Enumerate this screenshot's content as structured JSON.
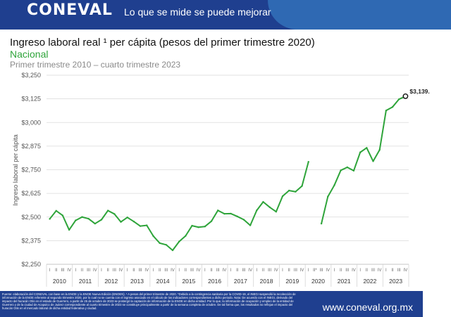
{
  "header": {
    "logo_text": "CONEVAL",
    "tagline": "Lo que se mide se puede mejorar",
    "colors": {
      "background": "#1f3f8f",
      "swoosh": "#2f69b3"
    }
  },
  "footer": {
    "note": "Fuente: elaboración del CONEVAL con base en la ENOE y la ENOE Nueva Edición (ENOEN). ¹ A pesos del primer trimestre de 2020. *Debido a la contingencia sanitaria por la COVID-19, el INEGI suspendió la recolección de información de la ENOE referente al segundo trimestre 2020, por lo cual no se cuenta con el ingreso asociado en el cálculo de los indicadores correspondientes a dicho periodo. Nota: De acuerdo con el INEGI, derivado del impacto del huracán Otis en el estado de Guerrero, a partir de 25 de octubre de 2023 se postergó la captación de información de la ENOE en dicha entidad. Por lo que, la información de ocupación y empleo de la entidad de Guerrero y de la ciudad de Acapulco de Juárez correspondiente al cuarto trimestre de 2023 se constituye principalmente a partir de la semana completa de octubre. De tal forma que, los resultados no reflejan el impacto del huracán Otis en el mercado laboral de dicha entidad federativa y ciudad.",
    "url": "www.coneval.org.mx"
  },
  "chart_data": {
    "type": "line",
    "title": "Ingreso laboral real ¹ per cápita (pesos del primer trimestre 2020)",
    "subtitle": "Nacional",
    "period": "Primer trimestre 2010 – cuarto trimestre 2023",
    "ylabel": "Ingreso laboral per cápita",
    "ylim": [
      2250,
      3250
    ],
    "yticks": [
      "$2,250",
      "$2,375",
      "$2,500",
      "$2,625",
      "$2,750",
      "$2,875",
      "$3,000",
      "$3,125",
      "$3,250"
    ],
    "ytick_values": [
      2250,
      2375,
      2500,
      2625,
      2750,
      2875,
      3000,
      3125,
      3250
    ],
    "grid": true,
    "line_color": "#2ea43a",
    "years": [
      {
        "label": "2010",
        "quarters": [
          "I",
          "II",
          "III",
          "IV"
        ]
      },
      {
        "label": "2011",
        "quarters": [
          "I",
          "II",
          "III",
          "IV"
        ]
      },
      {
        "label": "2012",
        "quarters": [
          "I",
          "II",
          "III",
          "IV"
        ]
      },
      {
        "label": "2013",
        "quarters": [
          "I",
          "II",
          "III",
          "IV"
        ]
      },
      {
        "label": "2014",
        "quarters": [
          "I",
          "II",
          "III",
          "IV"
        ]
      },
      {
        "label": "2015",
        "quarters": [
          "I",
          "II",
          "III",
          "IV"
        ]
      },
      {
        "label": "2016",
        "quarters": [
          "I",
          "II",
          "III",
          "IV"
        ]
      },
      {
        "label": "2017",
        "quarters": [
          "I",
          "II",
          "III",
          "IV"
        ]
      },
      {
        "label": "2018",
        "quarters": [
          "I",
          "II",
          "III",
          "IV"
        ]
      },
      {
        "label": "2019",
        "quarters": [
          "I",
          "II",
          "III",
          "IV"
        ]
      },
      {
        "label": "2020",
        "quarters": [
          "I",
          "II*",
          "III",
          "IV"
        ]
      },
      {
        "label": "2021",
        "quarters": [
          "I",
          "II",
          "III",
          "IV"
        ]
      },
      {
        "label": "2022",
        "quarters": [
          "I",
          "II",
          "III",
          "IV"
        ]
      },
      {
        "label": "2023",
        "quarters": [
          "I",
          "II",
          "III",
          "IV"
        ]
      }
    ],
    "values": [
      2490,
      2533,
      2508,
      2432,
      2482,
      2500,
      2491,
      2465,
      2486,
      2534,
      2516,
      2474,
      2498,
      2476,
      2452,
      2456,
      2400,
      2362,
      2353,
      2324,
      2370,
      2400,
      2454,
      2446,
      2450,
      2478,
      2535,
      2517,
      2518,
      2503,
      2486,
      2456,
      2535,
      2580,
      2552,
      2528,
      2610,
      2640,
      2634,
      2664,
      2792,
      null,
      2465,
      2608,
      2668,
      2747,
      2763,
      2745,
      2842,
      2866,
      2795,
      2855,
      3063,
      3082,
      3123,
      3139
    ],
    "end_label": "$3,139."
  }
}
